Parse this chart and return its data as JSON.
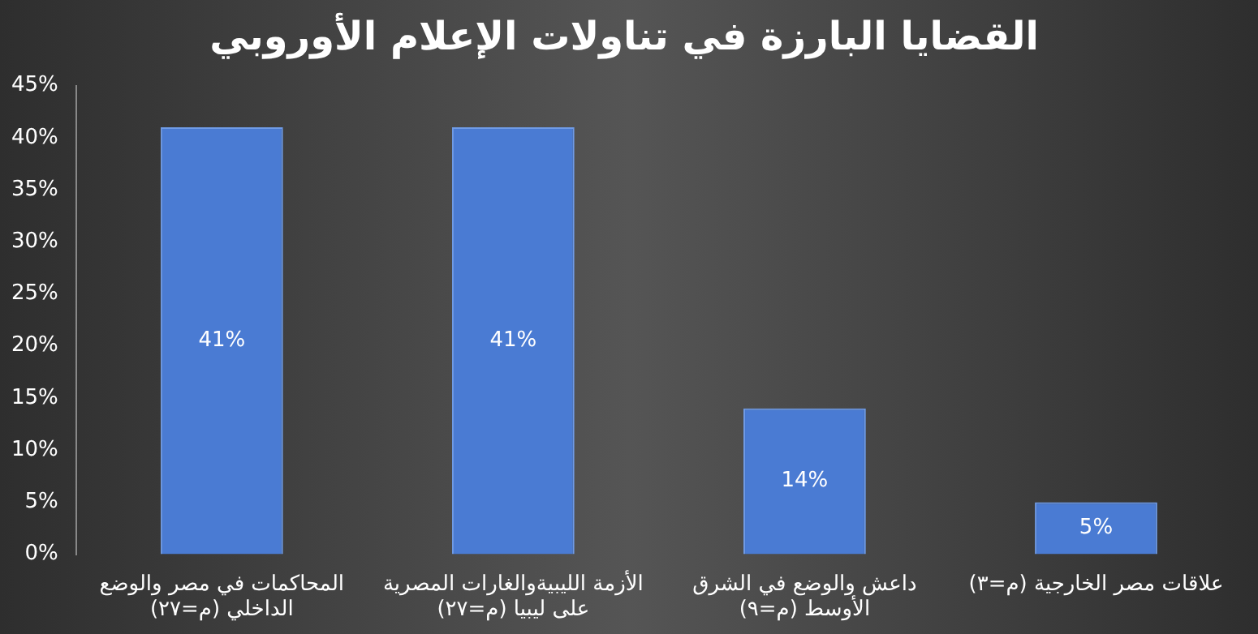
{
  "chart_data": {
    "type": "bar",
    "title": "القضايا البارزة في تناولات الإعلام الأوروبي",
    "categories": [
      "المحاكمات في مصر والوضع الداخلي (م=٢٧)",
      "الأزمة الليبيةوالغارات المصرية على ليبيا (م=٢٧)",
      "داعش والوضع في الشرق الأوسط (م=٩)",
      "علاقات مصر الخارجية (م=٣)"
    ],
    "values": [
      41,
      41,
      14,
      5
    ],
    "value_labels": [
      "41%",
      "41%",
      "14%",
      "5%"
    ],
    "color": "#4a7bd3",
    "ylim": [
      0,
      45
    ],
    "yticks": [
      {
        "value": 0,
        "label": "0%"
      },
      {
        "value": 5,
        "label": "5%"
      },
      {
        "value": 10,
        "label": "10%"
      },
      {
        "value": 15,
        "label": "15%"
      },
      {
        "value": 20,
        "label": "20%"
      },
      {
        "value": 25,
        "label": "25%"
      },
      {
        "value": 30,
        "label": "30%"
      },
      {
        "value": 35,
        "label": "35%"
      },
      {
        "value": 40,
        "label": "40%"
      },
      {
        "value": 45,
        "label": "45%"
      }
    ],
    "grid": false,
    "legend": false
  }
}
